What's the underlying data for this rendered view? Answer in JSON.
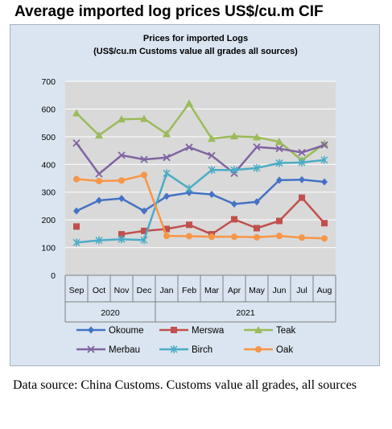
{
  "page_title": "Average imported log prices US$/cu.m CIF",
  "source_note": "Data source: China Customs. Customs value all grades, all sources",
  "chart_data": {
    "type": "line",
    "title": "Prices for imported Logs",
    "subtitle": "(US$/cu.m Customs value all grades all sources)",
    "categories": [
      "Sep",
      "Oct",
      "Nov",
      "Dec",
      "Jan",
      "Feb",
      "Mar",
      "Apr",
      "May",
      "Jun",
      "Jul",
      "Aug"
    ],
    "year_groups": [
      {
        "label": "2020",
        "start": 0,
        "end": 3
      },
      {
        "label": "2021",
        "start": 4,
        "end": 11
      }
    ],
    "ylim": [
      0,
      700
    ],
    "yticks": [
      0,
      100,
      200,
      300,
      400,
      500,
      600,
      700
    ],
    "grid": true,
    "legend_position": "bottom",
    "series": [
      {
        "name": "Okoume",
        "color": "#4472c4",
        "marker": "diamond",
        "values": [
          232,
          270,
          277,
          232,
          285,
          298,
          292,
          257,
          265,
          343,
          345,
          337
        ]
      },
      {
        "name": "Merswa",
        "color": "#c0504d",
        "marker": "square",
        "values": [
          176,
          null,
          148,
          160,
          167,
          182,
          148,
          202,
          170,
          196,
          280,
          188
        ]
      },
      {
        "name": "Teak",
        "color": "#9bbb59",
        "marker": "triangle",
        "values": [
          585,
          505,
          563,
          565,
          510,
          620,
          493,
          502,
          498,
          482,
          415,
          475
        ]
      },
      {
        "name": "Merbau",
        "color": "#8064a2",
        "marker": "x",
        "values": [
          477,
          366,
          433,
          418,
          425,
          462,
          432,
          368,
          463,
          457,
          443,
          470
        ]
      },
      {
        "name": "Birch",
        "color": "#4bacc6",
        "marker": "star",
        "values": [
          118,
          126,
          130,
          127,
          368,
          313,
          380,
          380,
          387,
          405,
          407,
          416
        ]
      },
      {
        "name": "Oak",
        "color": "#f79646",
        "marker": "circle",
        "values": [
          347,
          340,
          342,
          362,
          142,
          141,
          139,
          139,
          137,
          142,
          136,
          133
        ]
      }
    ]
  }
}
